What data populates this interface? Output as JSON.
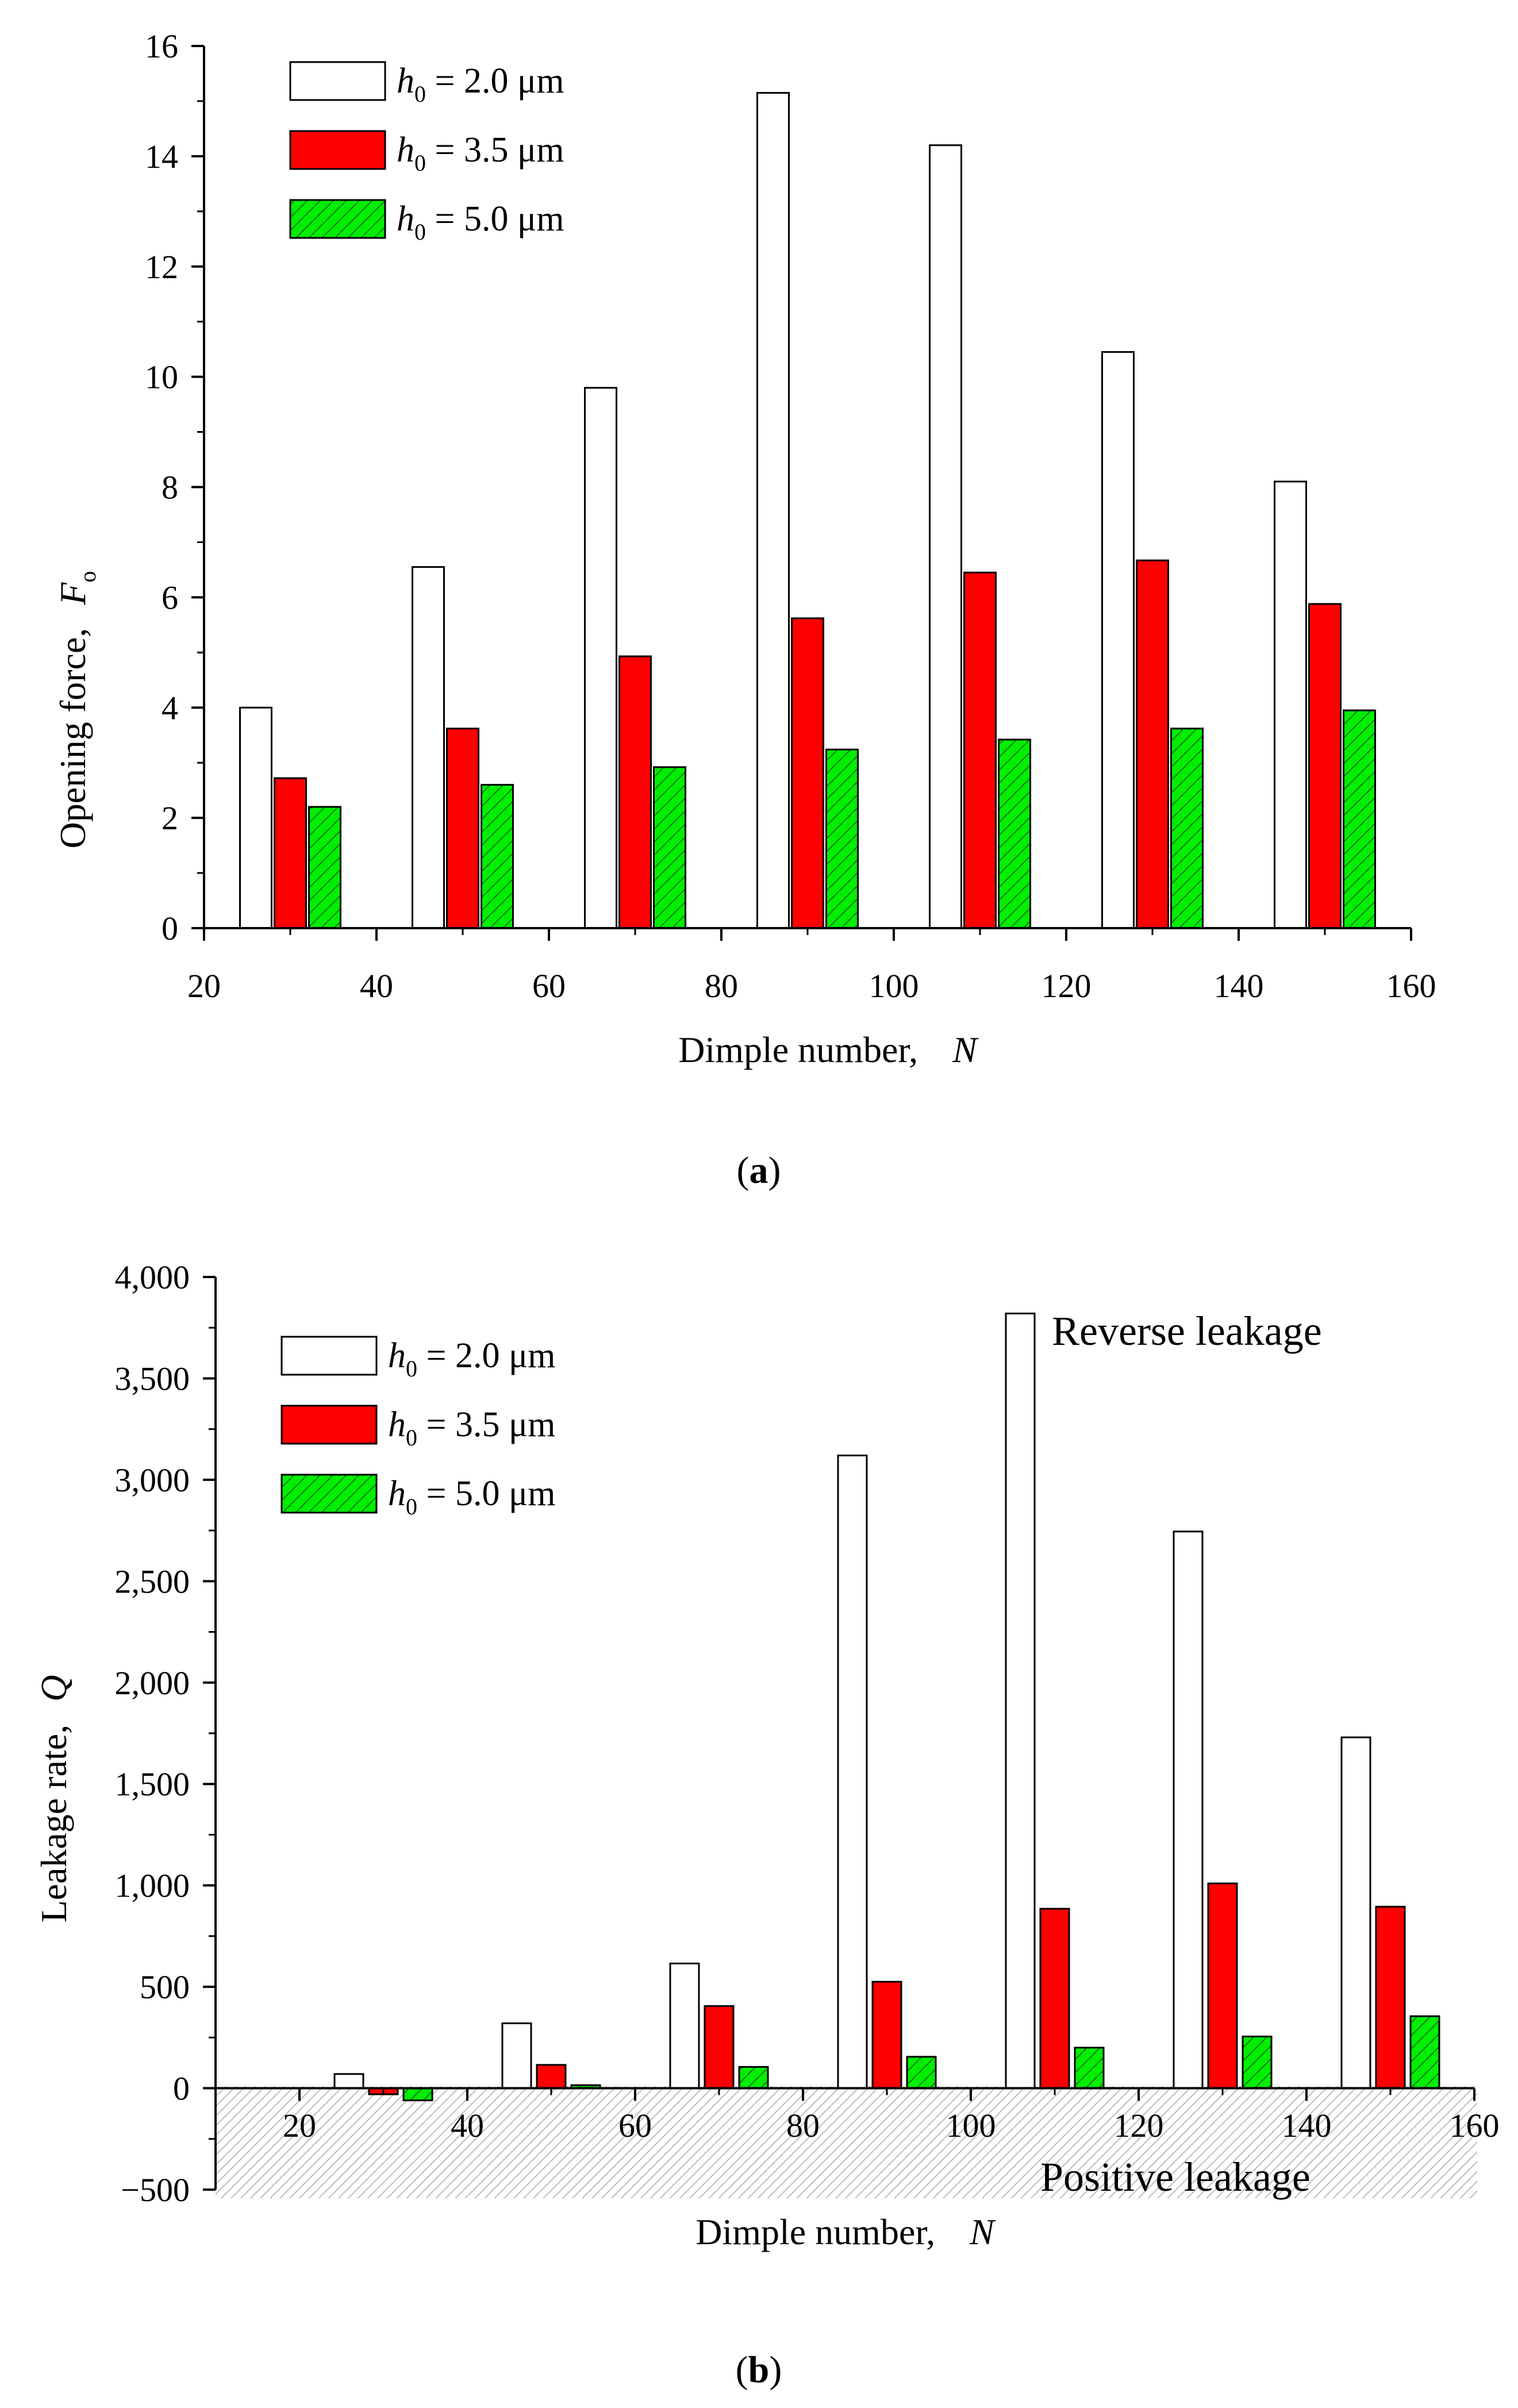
{
  "chart_data": [
    {
      "type": "bar",
      "panel": "a",
      "caption_letter": "a",
      "caption_open": "(",
      "caption_close": ")",
      "xlabel": "Dimple number,",
      "xlabel_var": "N",
      "ylabel": "Opening force,",
      "ylabel_var": "F",
      "ylabel_sub": "o",
      "xlim": [
        20,
        160
      ],
      "ylim": [
        0,
        16
      ],
      "xticks": [
        20,
        40,
        60,
        80,
        100,
        120,
        140,
        160
      ],
      "xtick_labels": [
        "20",
        "40",
        "60",
        "80",
        "100",
        "120",
        "140",
        "160"
      ],
      "yticks": [
        0,
        2,
        4,
        6,
        8,
        10,
        12,
        14,
        16
      ],
      "ytick_labels": [
        "0",
        "2",
        "4",
        "6",
        "8",
        "10",
        "12",
        "14",
        "16"
      ],
      "x": [
        30,
        50,
        70,
        90,
        110,
        130,
        150
      ],
      "series": [
        {
          "var": "h",
          "sub": "0",
          "text": " = 2.0 μm",
          "style": "white",
          "values": [
            4.0,
            6.55,
            9.8,
            15.15,
            14.2,
            10.45,
            8.1
          ]
        },
        {
          "var": "h",
          "sub": "0",
          "text": " = 3.5 μm",
          "style": "red",
          "values": [
            2.72,
            3.62,
            4.93,
            5.62,
            6.45,
            6.67,
            5.88
          ]
        },
        {
          "var": "h",
          "sub": "0",
          "text": " = 5.0 μm",
          "style": "green-hatched",
          "values": [
            2.2,
            2.6,
            2.92,
            3.24,
            3.42,
            3.62,
            3.95
          ]
        }
      ]
    },
    {
      "type": "bar",
      "panel": "b",
      "caption_letter": "b",
      "caption_open": "(",
      "caption_close": ")",
      "xlabel": "Dimple number,",
      "xlabel_var": "N",
      "ylabel": "Leakage rate,",
      "ylabel_var": "Q",
      "xlim": [
        10,
        160
      ],
      "ylim": [
        -500,
        4000
      ],
      "xticks": [
        20,
        40,
        60,
        80,
        100,
        120,
        140,
        160
      ],
      "xtick_labels": [
        "20",
        "40",
        "60",
        "80",
        "100",
        "120",
        "140",
        "160"
      ],
      "yticks": [
        -500,
        0,
        500,
        1000,
        1500,
        2000,
        2500,
        3000,
        3500,
        4000
      ],
      "ytick_labels": [
        "−500",
        "0",
        "500",
        "1,000",
        "1,500",
        "2,000",
        "2,500",
        "3,000",
        "3,500",
        "4,000"
      ],
      "x": [
        30,
        50,
        70,
        90,
        110,
        130,
        150
      ],
      "annotation_top": "Reverse leakage",
      "annotation_bottom": "Positive leakage",
      "series": [
        {
          "var": "h",
          "sub": "0",
          "text": " = 2.0 μm",
          "style": "white",
          "values": [
            70,
            320,
            615,
            3120,
            3820,
            2745,
            1730
          ]
        },
        {
          "var": "h",
          "sub": "0",
          "text": " = 3.5 μm",
          "style": "red",
          "values": [
            -30,
            115,
            405,
            525,
            885,
            1010,
            895
          ]
        },
        {
          "var": "h",
          "sub": "0",
          "text": " = 5.0 μm",
          "style": "green-hatched",
          "values": [
            -60,
            15,
            105,
            155,
            200,
            255,
            355
          ]
        }
      ]
    }
  ],
  "colors": {
    "red": "#ff0000",
    "green": "#00ee00",
    "white": "#ffffff",
    "axis": "#000000",
    "shade": "#c8c8c8"
  }
}
